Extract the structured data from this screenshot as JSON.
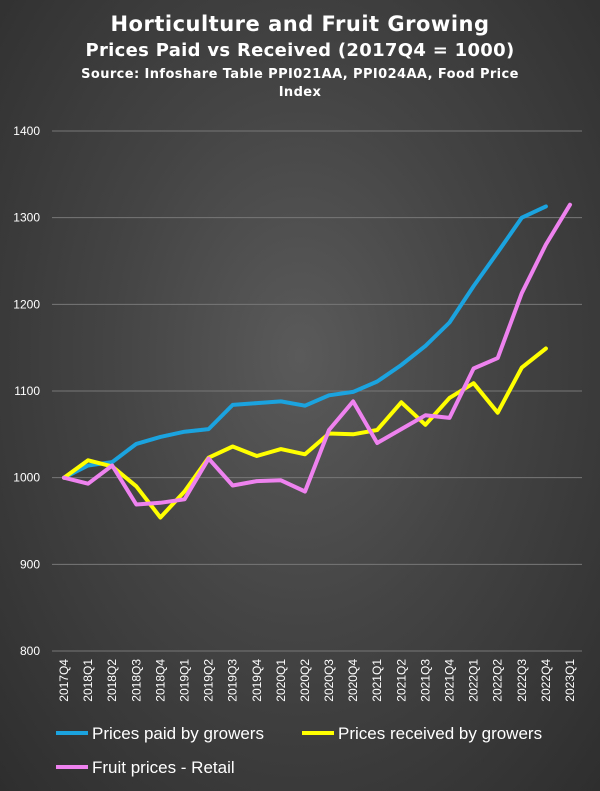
{
  "chart_data": {
    "type": "line",
    "title": "Horticulture and Fruit Growing",
    "subtitle": "Prices Paid vs Received (2017Q4 = 1000)",
    "source": "Source: Infoshare Table PPI021AA, PPI024AA, Food Price Index",
    "xlabel": "",
    "ylabel": "",
    "ylim": [
      800,
      1400
    ],
    "yticks": [
      "800",
      "900",
      "1000",
      "1100",
      "1200",
      "1300",
      "1400"
    ],
    "grid": true,
    "legend_position": "bottom",
    "categories": [
      "2017Q4",
      "2018Q1",
      "2018Q2",
      "2018Q3",
      "2018Q4",
      "2019Q1",
      "2019Q2",
      "2019Q3",
      "2019Q4",
      "2020Q1",
      "2020Q2",
      "2020Q3",
      "2020Q4",
      "2021Q1",
      "2021Q2",
      "2021Q3",
      "2021Q4",
      "2022Q1",
      "2022Q2",
      "2022Q3",
      "2022Q4",
      "2023Q1"
    ],
    "series": [
      {
        "name": "Prices paid by growers",
        "color": "#1aa3df",
        "values": [
          1000,
          1014,
          1018,
          1039,
          1047,
          1053,
          1056,
          1084,
          1086,
          1088,
          1083,
          1095,
          1099,
          1111,
          1130,
          1152,
          1179,
          1221,
          1260,
          1300,
          1313,
          null
        ]
      },
      {
        "name": "Prices received by growers",
        "color": "#ffff00",
        "values": [
          1000,
          1020,
          1013,
          990,
          954,
          984,
          1023,
          1036,
          1025,
          1033,
          1027,
          1051,
          1050,
          1055,
          1087,
          1061,
          1092,
          1109,
          1075,
          1127,
          1149,
          null
        ]
      },
      {
        "name": "Fruit prices - Retail",
        "color": "#ee82ee",
        "values": [
          1000,
          993,
          1014,
          969,
          971,
          975,
          1022,
          991,
          996,
          997,
          984,
          1055,
          1088,
          1040,
          1056,
          1072,
          1069,
          1126,
          1138,
          1213,
          1269,
          1315
        ]
      }
    ]
  }
}
